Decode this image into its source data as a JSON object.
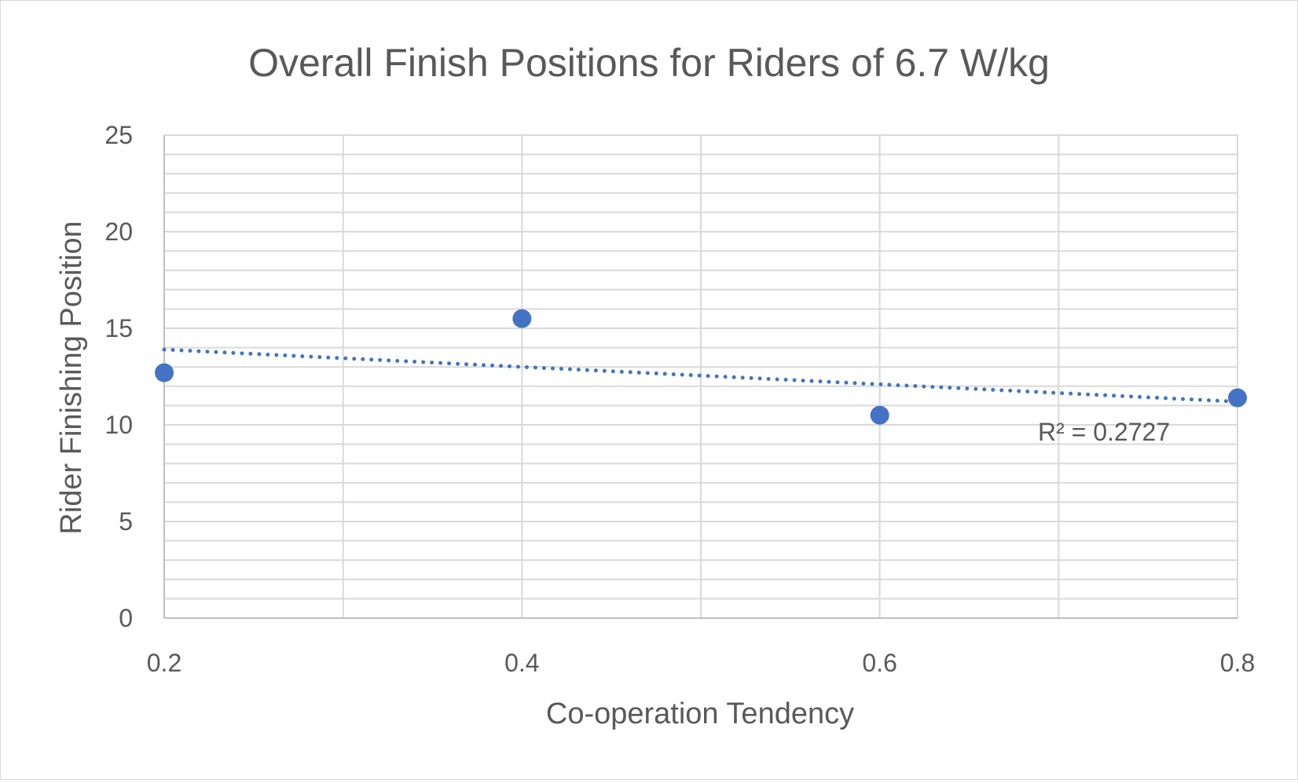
{
  "chart_data": {
    "type": "scatter",
    "title": "Overall Finish Positions for Riders of 6.7 W/kg",
    "xlabel": "Co-operation Tendency",
    "ylabel": "Rider Finishing Position",
    "xlim": [
      0.2,
      0.8
    ],
    "ylim": [
      0,
      25
    ],
    "x_ticks": [
      0.2,
      0.4,
      0.6,
      0.8
    ],
    "y_ticks": [
      0,
      5,
      10,
      15,
      20,
      25
    ],
    "x_tick_labels": [
      "0.2",
      "0.4",
      "0.6",
      "0.8"
    ],
    "y_tick_labels": [
      "0",
      "5",
      "10",
      "15",
      "20",
      "25"
    ],
    "grid": true,
    "x_minor_gridlines": [
      0.3,
      0.5,
      0.7
    ],
    "y_minor_step": 1,
    "legend": "none",
    "series": [
      {
        "x": [
          0.2,
          0.4,
          0.6,
          0.8
        ],
        "y": [
          12.7,
          15.5,
          10.5,
          11.4
        ],
        "color": "#4472c4"
      }
    ],
    "trendline": {
      "type": "linear",
      "style": "dotted",
      "color": "#4472c4",
      "x": [
        0.2,
        0.8
      ],
      "y": [
        13.9,
        11.2
      ],
      "r_squared_label": "R² = 0.2727"
    }
  }
}
